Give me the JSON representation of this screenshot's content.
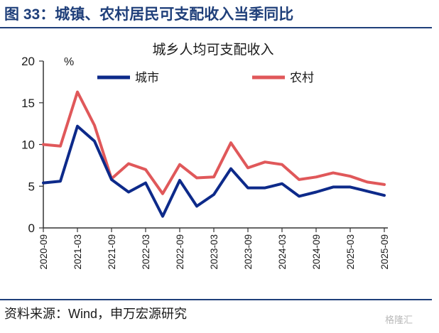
{
  "figure_title": "图 33：城镇、农村居民可支配收入当季同比",
  "source": "资料来源：Wind，申万宏源研究",
  "watermark": "格隆汇",
  "colors": {
    "city": "#0d2a8a",
    "rural": "#e0585a",
    "brand": "#1f3f7a"
  },
  "chart_data": {
    "type": "line",
    "title": "城乡人均可支配收入",
    "ylabel": "%",
    "ylim": [
      0,
      20
    ],
    "yticks": [
      0,
      5,
      10,
      15,
      20
    ],
    "grid": false,
    "legend_position": "top",
    "x": [
      "2020-09",
      "2020-12",
      "2021-03",
      "2021-06",
      "2021-09",
      "2021-12",
      "2022-03",
      "2022-06",
      "2022-09",
      "2022-12",
      "2023-03",
      "2023-06",
      "2023-09",
      "2023-12",
      "2024-03",
      "2024-06",
      "2024-09",
      "2024-12",
      "2025-03",
      "2025-06",
      "2025-09"
    ],
    "xtick_labels": [
      "2020-09",
      "2021-03",
      "2021-09",
      "2022-03",
      "2022-09",
      "2023-03",
      "2023-09",
      "2024-03",
      "2024-09",
      "2025-03",
      "2025-09"
    ],
    "series": [
      {
        "name": "城市",
        "values": [
          5.4,
          5.6,
          12.2,
          10.4,
          5.8,
          4.3,
          5.4,
          1.4,
          5.7,
          2.6,
          4.0,
          7.1,
          4.8,
          4.8,
          5.3,
          3.8,
          4.3,
          4.9,
          4.9,
          4.4,
          3.9
        ]
      },
      {
        "name": "农村",
        "values": [
          10.0,
          9.8,
          16.3,
          12.3,
          5.9,
          7.7,
          7.0,
          4.1,
          7.6,
          6.0,
          6.1,
          10.2,
          7.2,
          7.9,
          7.6,
          5.8,
          6.1,
          6.6,
          6.2,
          5.5,
          5.2
        ]
      }
    ]
  }
}
